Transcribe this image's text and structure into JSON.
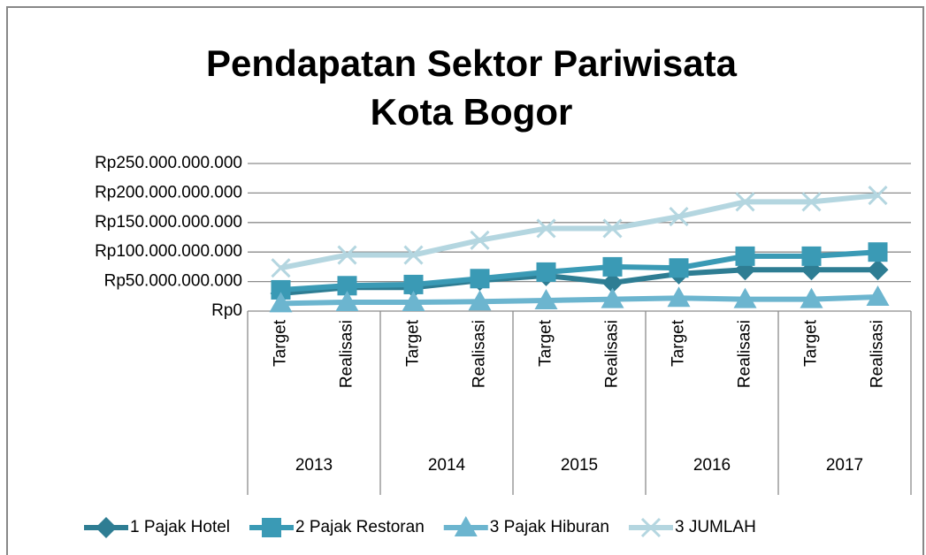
{
  "chart_data": {
    "type": "line",
    "title": [
      "Pendapatan Sektor Pariwisata",
      "Kota Bogor"
    ],
    "categories": [
      "Target",
      "Realisasi",
      "Target",
      "Realisasi",
      "Target",
      "Realisasi",
      "Target",
      "Realisasi",
      "Target",
      "Realisasi"
    ],
    "groups": [
      "2013",
      "2014",
      "2015",
      "2016",
      "2017"
    ],
    "series": [
      {
        "name": "1 Pajak Hotel",
        "color": "#2e7d93",
        "marker": "diamond",
        "values": [
          30000000000,
          40000000000,
          40000000000,
          52000000000,
          60000000000,
          48000000000,
          63000000000,
          70000000000,
          70000000000,
          70000000000
        ]
      },
      {
        "name": "2 Pajak Restoran",
        "color": "#3a9ab5",
        "marker": "square",
        "values": [
          36000000000,
          43000000000,
          45000000000,
          55000000000,
          66000000000,
          75000000000,
          73000000000,
          93000000000,
          93000000000,
          100000000000
        ]
      },
      {
        "name": "3 Pajak Hiburan",
        "color": "#6cb5cf",
        "marker": "triangle",
        "values": [
          13000000000,
          15000000000,
          15000000000,
          16000000000,
          18000000000,
          20000000000,
          22000000000,
          20000000000,
          20000000000,
          24000000000
        ]
      },
      {
        "name": "3 JUMLAH",
        "color": "#b4d6e0",
        "marker": "x",
        "values": [
          73000000000,
          95000000000,
          95000000000,
          120000000000,
          140000000000,
          140000000000,
          160000000000,
          185000000000,
          185000000000,
          196000000000
        ]
      }
    ],
    "ylim": [
      0,
      250000000000
    ],
    "yticks": [
      {
        "value": 0,
        "label": "Rp0"
      },
      {
        "value": 50000000000,
        "label": "Rp50.000.000.000"
      },
      {
        "value": 100000000000,
        "label": "Rp100.000.000.000"
      },
      {
        "value": 150000000000,
        "label": "Rp150.000.000.000"
      },
      {
        "value": 200000000000,
        "label": "Rp200.000.000.000"
      },
      {
        "value": 250000000000,
        "label": "Rp250.000.000.000"
      }
    ],
    "grid": true,
    "legend": "bottom"
  }
}
